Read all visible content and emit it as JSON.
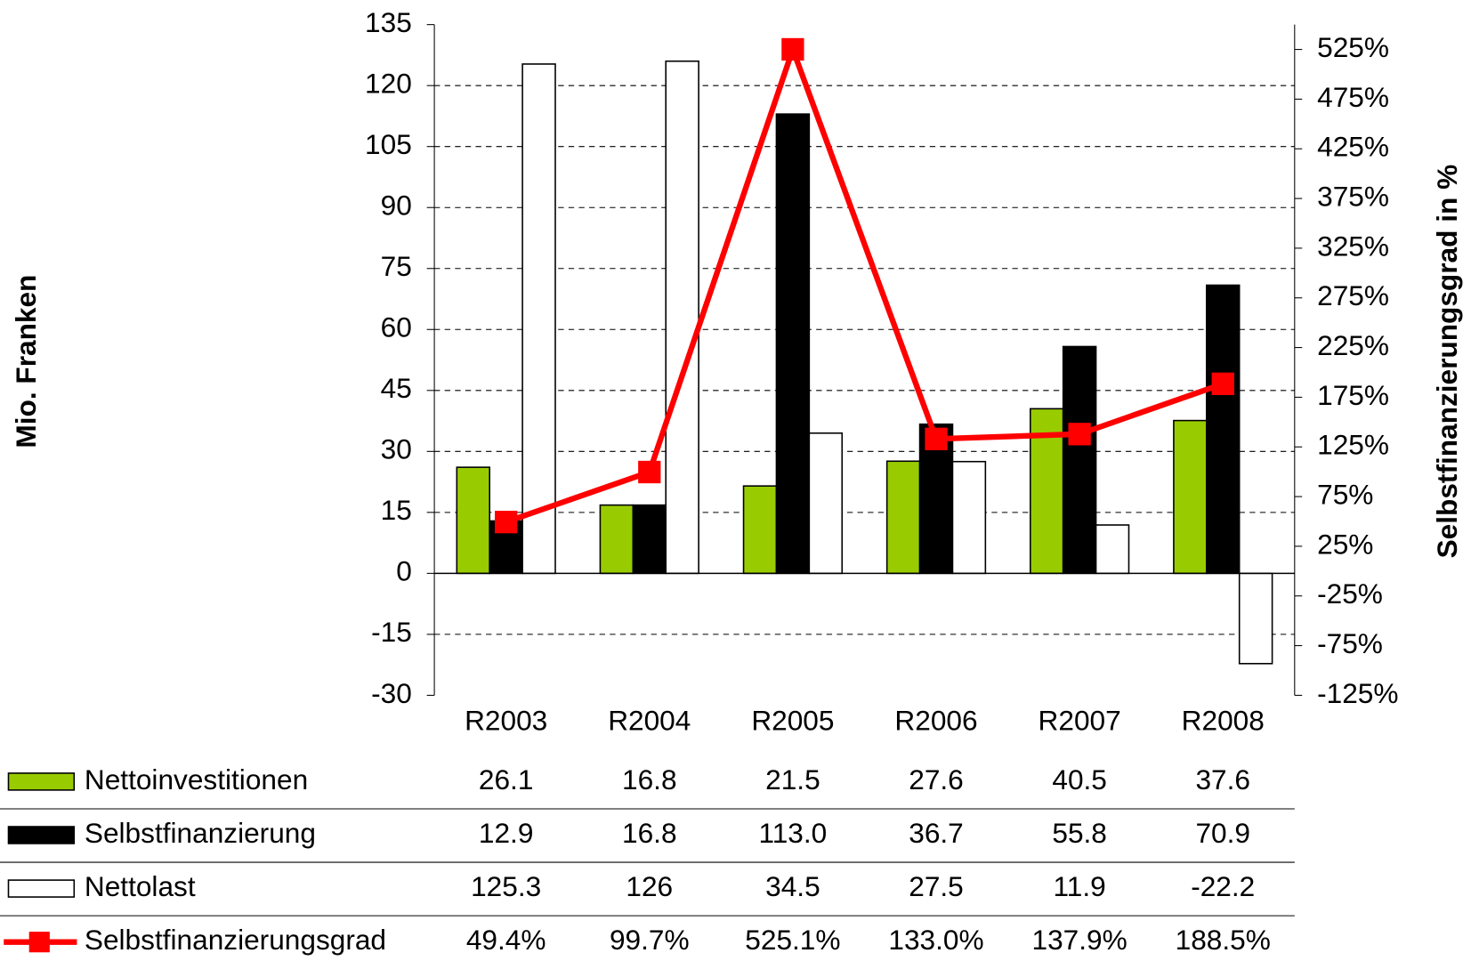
{
  "chart_data": {
    "type": "bar",
    "ylabel": "Mio. Franken",
    "y2label": "Selbstfinanzierungsgrad in %",
    "categories": [
      "R2003",
      "R2004",
      "R2005",
      "R2006",
      "R2007",
      "R2008"
    ],
    "series": [
      {
        "name": "Nettoinvestitionen",
        "color": "#99cc00",
        "values": [
          26.1,
          16.8,
          21.5,
          27.6,
          40.5,
          37.6
        ],
        "value_labels": [
          "26.1",
          "16.8",
          "21.5",
          "27.6",
          "40.5",
          "37.6"
        ]
      },
      {
        "name": "Selbstfinanzierung",
        "color": "#000000",
        "values": [
          12.9,
          16.8,
          113.0,
          36.7,
          55.8,
          70.9
        ],
        "value_labels": [
          "12.9",
          "16.8",
          "113.0",
          "36.7",
          "55.8",
          "70.9"
        ]
      },
      {
        "name": "Nettolast",
        "color": "#ffffff",
        "values": [
          125.3,
          126,
          34.5,
          27.5,
          11.9,
          -22.2
        ],
        "value_labels": [
          "125.3",
          "126",
          "34.5",
          "27.5",
          "11.9",
          "-22.2"
        ]
      },
      {
        "name": "Selbstfinanzierungsgrad",
        "color": "#ff0000",
        "type": "line",
        "axis": "y2",
        "values": [
          49.4,
          99.7,
          525.1,
          133.0,
          137.9,
          188.5
        ],
        "value_labels": [
          "49.4%",
          "99.7%",
          "525.1%",
          "133.0%",
          "137.9%",
          "188.5%"
        ]
      }
    ],
    "ylim": [
      -30,
      135
    ],
    "yticks": [
      -30,
      -15,
      0,
      15,
      30,
      45,
      60,
      75,
      90,
      105,
      120,
      135
    ],
    "y2lim": [
      -125,
      550
    ],
    "y2ticks": [
      {
        "value": -125,
        "label": "-125%"
      },
      {
        "value": -75,
        "label": "-75%"
      },
      {
        "value": -25,
        "label": "-25%"
      },
      {
        "value": 25,
        "label": "25%"
      },
      {
        "value": 75,
        "label": "75%"
      },
      {
        "value": 125,
        "label": "125%"
      },
      {
        "value": 175,
        "label": "175%"
      },
      {
        "value": 225,
        "label": "225%"
      },
      {
        "value": 275,
        "label": "275%"
      },
      {
        "value": 325,
        "label": "325%"
      },
      {
        "value": 375,
        "label": "375%"
      },
      {
        "value": 425,
        "label": "425%"
      },
      {
        "value": 475,
        "label": "475%"
      },
      {
        "value": 525,
        "label": "525%"
      }
    ],
    "grid": true
  }
}
